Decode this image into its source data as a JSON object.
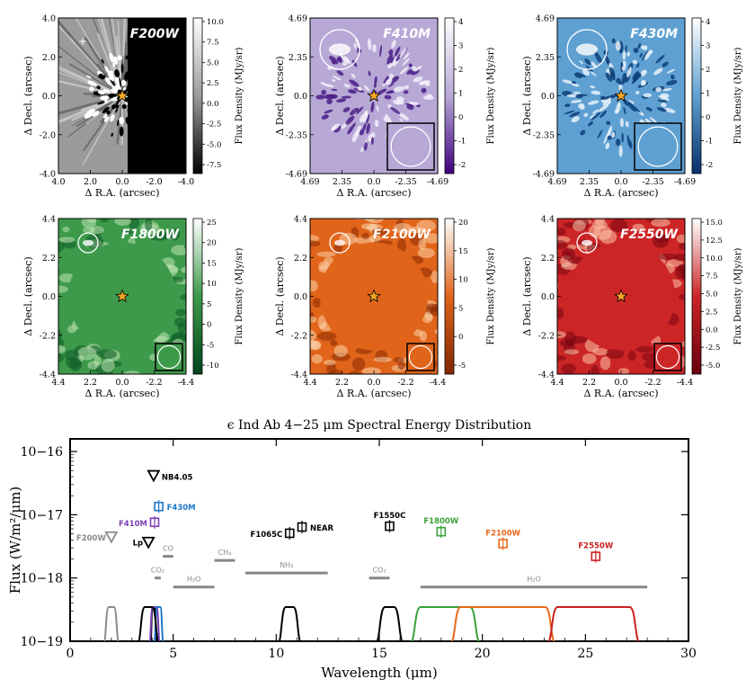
{
  "panels": [
    {
      "filter": "F200W",
      "cmap": "gray",
      "ylabel": "Δ Decl. (arcsec)",
      "xlabel": "Δ R.A. (arcsec)",
      "cb_label": "Flux Density (MJy/sr)",
      "xticks": [
        "4.0",
        "2.0",
        "0.0",
        "-2.0",
        "-4.0"
      ],
      "yticks": [
        "4.0",
        "2.0",
        "0.0",
        "-2.0",
        "-4.0"
      ],
      "cb_ticks": [
        "10.0",
        "7.5",
        "5.0",
        "2.5",
        "0.0",
        "-2.5",
        "-5.0",
        "-7.5"
      ],
      "circle": false,
      "inset": false
    },
    {
      "filter": "F410M",
      "cmap": "purple",
      "ylabel": "Δ Decl. (arcsec)",
      "xlabel": "Δ R.A. (arcsec)",
      "cb_label": "Flux Density (MJy/sr)",
      "xticks": [
        "4.69",
        "2.35",
        "0.0",
        "-2.35",
        "-4.69"
      ],
      "yticks": [
        "4.69",
        "2.35",
        "0.0",
        "-2.35",
        "-4.69"
      ],
      "cb_ticks": [
        "4",
        "3",
        "2",
        "1",
        "0",
        "-1",
        "-2"
      ],
      "circle": true,
      "inset": true
    },
    {
      "filter": "F430M",
      "cmap": "blue",
      "ylabel": "Δ Decl. (arcsec)",
      "xlabel": "Δ R.A. (arcsec)",
      "cb_label": "Flux Density (MJy/sr)",
      "xticks": [
        "4.69",
        "2.35",
        "0.0",
        "-2.35",
        "-4.69"
      ],
      "yticks": [
        "4.69",
        "2.35",
        "0.0",
        "-2.35",
        "-4.69"
      ],
      "cb_ticks": [
        "4",
        "3",
        "2",
        "1",
        "0",
        "-1",
        "-2"
      ],
      "circle": true,
      "inset": true
    },
    {
      "filter": "F1800W",
      "cmap": "green",
      "ylabel": "Δ Decl. (arcsec)",
      "xlabel": "Δ R.A. (arcsec)",
      "cb_label": "Flux Density (MJy/sr)",
      "xticks": [
        "4.4",
        "2.2",
        "0.0",
        "-2.2",
        "-4.4"
      ],
      "yticks": [
        "4.4",
        "2.2",
        "0.0",
        "-2.2",
        "-4.4"
      ],
      "cb_ticks": [
        "25",
        "20",
        "15",
        "10",
        "5",
        "0",
        "-5",
        "-10"
      ],
      "circle": true,
      "inset": true
    },
    {
      "filter": "F2100W",
      "cmap": "orange",
      "ylabel": "Δ Decl. (arcsec)",
      "xlabel": "Δ R.A. (arcsec)",
      "cb_label": "Flux Density (MJy/sr)",
      "xticks": [
        "4.4",
        "2.2",
        "0.0",
        "-2.2",
        "-4.4"
      ],
      "yticks": [
        "4.4",
        "2.2",
        "0.0",
        "-2.2",
        "-4.4"
      ],
      "cb_ticks": [
        "20",
        "15",
        "10",
        "5",
        "0",
        "-5"
      ],
      "circle": true,
      "inset": true
    },
    {
      "filter": "F2550W",
      "cmap": "red",
      "ylabel": "Δ Decl. (arcsec)",
      "xlabel": "Δ R.A. (arcsec)",
      "cb_label": "Flux Density (MJy/sr)",
      "xticks": [
        "4.4",
        "2.2",
        "0.0",
        "-2.2",
        "-4.4"
      ],
      "yticks": [
        "4.4",
        "2.2",
        "0.0",
        "-2.2",
        "-4.4"
      ],
      "cb_ticks": [
        "15.0",
        "12.5",
        "10.0",
        "7.5",
        "5.0",
        "2.5",
        "0.0",
        "-2.5",
        "-5.0"
      ],
      "circle": true,
      "inset": true
    }
  ],
  "colors": {
    "gray": "#8a8a8a",
    "purple": "#7b3fb0",
    "blue": "#1f78c8",
    "green": "#3aa23a",
    "orange": "#e8691a",
    "red": "#cc2020",
    "black": "#000000",
    "molecule": "#888888",
    "star": "#f5a623"
  },
  "chart_data": {
    "type": "scatter",
    "title": "ϵ Ind Ab 4−25 μm Spectral Energy Distribution",
    "xlabel": "Wavelength (μm)",
    "ylabel": "Flux (W/m²/μm)",
    "xlim": [
      0,
      30
    ],
    "ylim_log10": [
      -19,
      -15.8
    ],
    "xticks": [
      "0",
      "5",
      "10",
      "15",
      "20",
      "25",
      "30"
    ],
    "yticks": [
      "10−16",
      "10−17",
      "10−18",
      "10−19"
    ],
    "grid": false,
    "points": [
      {
        "name": "F200W",
        "x": 2.0,
        "y": 4.5e-18,
        "marker": "triangle",
        "color": "#8a8a8a"
      },
      {
        "name": "Lp",
        "x": 3.8,
        "y": 3.7e-18,
        "marker": "triangle",
        "color": "#000000"
      },
      {
        "name": "NB4.05",
        "x": 4.05,
        "y": 4.2e-17,
        "marker": "triangle",
        "color": "#000000"
      },
      {
        "name": "F410M",
        "x": 4.1,
        "y": 7.6e-18,
        "marker": "square",
        "color": "#7b3fb0"
      },
      {
        "name": "F430M",
        "x": 4.3,
        "y": 1.35e-17,
        "marker": "square",
        "color": "#1f78c8"
      },
      {
        "name": "F1065C",
        "x": 10.65,
        "y": 5.1e-18,
        "marker": "square",
        "color": "#000000"
      },
      {
        "name": "NEAR",
        "x": 11.25,
        "y": 6.4e-18,
        "marker": "square",
        "color": "#000000"
      },
      {
        "name": "F1550C",
        "x": 15.5,
        "y": 6.6e-18,
        "marker": "square",
        "color": "#000000"
      },
      {
        "name": "F1800W",
        "x": 18.0,
        "y": 5.4e-18,
        "marker": "square",
        "color": "#3aa23a"
      },
      {
        "name": "F2100W",
        "x": 21.0,
        "y": 3.5e-18,
        "marker": "square",
        "color": "#e8691a"
      },
      {
        "name": "F2550W",
        "x": 25.5,
        "y": 2.2e-18,
        "marker": "square",
        "color": "#cc2020"
      }
    ],
    "bands": [
      {
        "name": "CO",
        "x0": 4.5,
        "x1": 5.0,
        "y": 2.2e-18
      },
      {
        "name": "CO₂",
        "x0": 4.1,
        "x1": 4.4,
        "y": 1e-18
      },
      {
        "name": "H₂O",
        "x0": 5.0,
        "x1": 7.0,
        "y": 7.2e-19
      },
      {
        "name": "CH₄",
        "x0": 7.0,
        "x1": 8.0,
        "y": 1.9e-18
      },
      {
        "name": "NH₃",
        "x0": 8.5,
        "x1": 12.5,
        "y": 1.2e-18
      },
      {
        "name": "CO₂",
        "x0": 14.5,
        "x1": 15.5,
        "y": 1e-18
      },
      {
        "name": "H₂O",
        "x0": 17.0,
        "x1": 28.0,
        "y": 7.2e-19
      }
    ],
    "filter_curves": [
      {
        "name": "F200W",
        "center": 2.0,
        "width": 0.5,
        "color": "#8a8a8a"
      },
      {
        "name": "NB4.05",
        "center": 4.05,
        "width": 0.2,
        "color": "#000000"
      },
      {
        "name": "F410M",
        "center": 4.1,
        "width": 0.35,
        "color": "#7b3fb0"
      },
      {
        "name": "F430M",
        "center": 4.3,
        "width": 0.3,
        "color": "#1f78c8"
      },
      {
        "name": "Lp",
        "center": 3.8,
        "width": 0.7,
        "color": "#000000"
      },
      {
        "name": "F1065C",
        "center": 10.65,
        "width": 0.75,
        "color": "#000000"
      },
      {
        "name": "F1550C",
        "center": 15.5,
        "width": 0.9,
        "color": "#000000"
      },
      {
        "name": "F1800W",
        "center": 18.2,
        "width": 2.9,
        "color": "#3aa23a"
      },
      {
        "name": "F2100W",
        "center": 21.0,
        "width": 4.6,
        "color": "#e8691a"
      },
      {
        "name": "F2550W",
        "center": 25.4,
        "width": 4.0,
        "color": "#cc2020"
      }
    ]
  }
}
